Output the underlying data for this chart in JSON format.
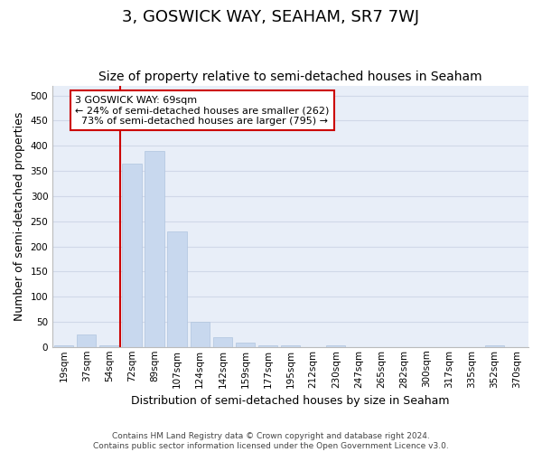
{
  "title": "3, GOSWICK WAY, SEAHAM, SR7 7WJ",
  "subtitle": "Size of property relative to semi-detached houses in Seaham",
  "xlabel": "Distribution of semi-detached houses by size in Seaham",
  "ylabel": "Number of semi-detached properties",
  "footer_line1": "Contains HM Land Registry data © Crown copyright and database right 2024.",
  "footer_line2": "Contains public sector information licensed under the Open Government Licence v3.0.",
  "categories": [
    "19sqm",
    "37sqm",
    "54sqm",
    "72sqm",
    "89sqm",
    "107sqm",
    "124sqm",
    "142sqm",
    "159sqm",
    "177sqm",
    "195sqm",
    "212sqm",
    "230sqm",
    "247sqm",
    "265sqm",
    "282sqm",
    "300sqm",
    "317sqm",
    "335sqm",
    "352sqm",
    "370sqm"
  ],
  "values": [
    3,
    25,
    3,
    365,
    390,
    230,
    50,
    20,
    8,
    4,
    3,
    0,
    3,
    0,
    0,
    0,
    0,
    0,
    0,
    3,
    0
  ],
  "bar_color": "#c8d8ee",
  "bar_edge_color": "#b0c4de",
  "property_line_col_idx": 3,
  "property_sqm": 69,
  "annotation_title": "3 GOSWICK WAY: 69sqm",
  "annotation_smaller_pct": 24,
  "annotation_smaller_count": 262,
  "annotation_larger_pct": 73,
  "annotation_larger_count": 795,
  "annotation_box_color": "#ffffff",
  "annotation_box_edge_color": "#cc0000",
  "property_line_color": "#cc0000",
  "ylim": [
    0,
    520
  ],
  "yticks": [
    0,
    50,
    100,
    150,
    200,
    250,
    300,
    350,
    400,
    450,
    500
  ],
  "grid_color": "#d0d8e8",
  "bg_color": "#e8eef8",
  "title_fontsize": 13,
  "subtitle_fontsize": 10,
  "axis_label_fontsize": 9,
  "tick_fontsize": 7.5,
  "footer_fontsize": 6.5
}
